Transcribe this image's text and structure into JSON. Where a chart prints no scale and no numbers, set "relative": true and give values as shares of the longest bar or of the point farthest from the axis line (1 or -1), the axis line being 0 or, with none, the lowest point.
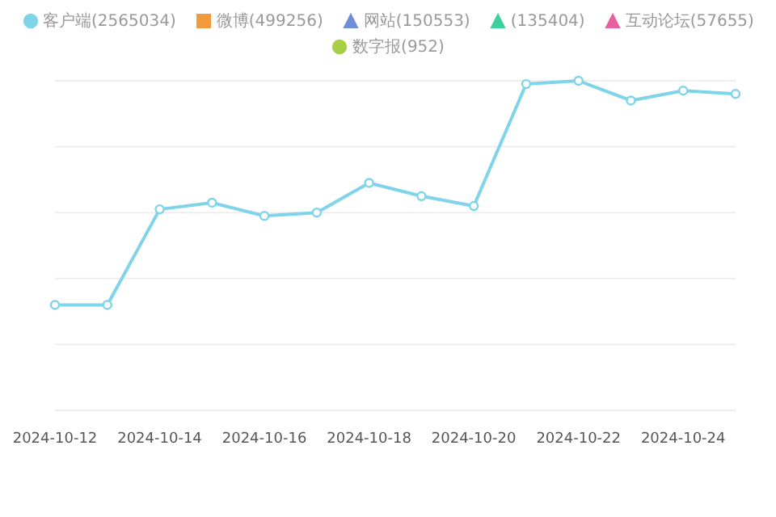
{
  "chart_data": {
    "type": "line",
    "relative": true,
    "grid": "y",
    "legend": "top",
    "line_style": "solid",
    "x": [
      "2024-10-12",
      "2024-10-13",
      "2024-10-14",
      "2024-10-15",
      "2024-10-16",
      "2024-10-17",
      "2024-10-18",
      "2024-10-19",
      "2024-10-20",
      "2024-10-21",
      "2024-10-22",
      "2024-10-23",
      "2024-10-24",
      "2024-10-25"
    ],
    "xlim": [
      "2024-10-12",
      "2024-10-25"
    ],
    "xticks": [
      "2024-10-12",
      "2024-10-14",
      "2024-10-16",
      "2024-10-18",
      "2024-10-20",
      "2024-10-22",
      "2024-10-24"
    ],
    "series": [
      {
        "name": "客户端(2565034)",
        "color": "#7fd4ea",
        "marker": "circle",
        "values": [
          0.32,
          0.32,
          0.61,
          0.63,
          0.59,
          0.6,
          0.69,
          0.65,
          0.62,
          0.99,
          1,
          0.94,
          0.97,
          0.96
        ]
      },
      {
        "name": "微博(499256)",
        "color": "#f39a3c",
        "marker": "square",
        "values": [
          null,
          null,
          null,
          null,
          null,
          null,
          null,
          null,
          null,
          null,
          null,
          null,
          null,
          null
        ]
      },
      {
        "name": "网站(150553)",
        "color": "#6f8fd8",
        "marker": "triangle",
        "values": [
          null,
          null,
          null,
          null,
          null,
          null,
          null,
          null,
          null,
          null,
          null,
          null,
          null,
          null
        ]
      },
      {
        "name": "(135404)",
        "color": "#3ecf9e",
        "marker": "triangle",
        "values": [
          null,
          null,
          null,
          null,
          null,
          null,
          null,
          null,
          null,
          null,
          null,
          null,
          null,
          null
        ]
      },
      {
        "name": "互动论坛(57655)",
        "color": "#e8609f",
        "marker": "triangle",
        "values": [
          null,
          null,
          null,
          null,
          null,
          null,
          null,
          null,
          null,
          null,
          null,
          null,
          null,
          null
        ]
      },
      {
        "name": "数字报(952)",
        "color": "#a6cf45",
        "marker": "circle",
        "values": [
          null,
          null,
          null,
          null,
          null,
          null,
          null,
          null,
          null,
          null,
          null,
          null,
          null,
          null
        ]
      }
    ]
  }
}
